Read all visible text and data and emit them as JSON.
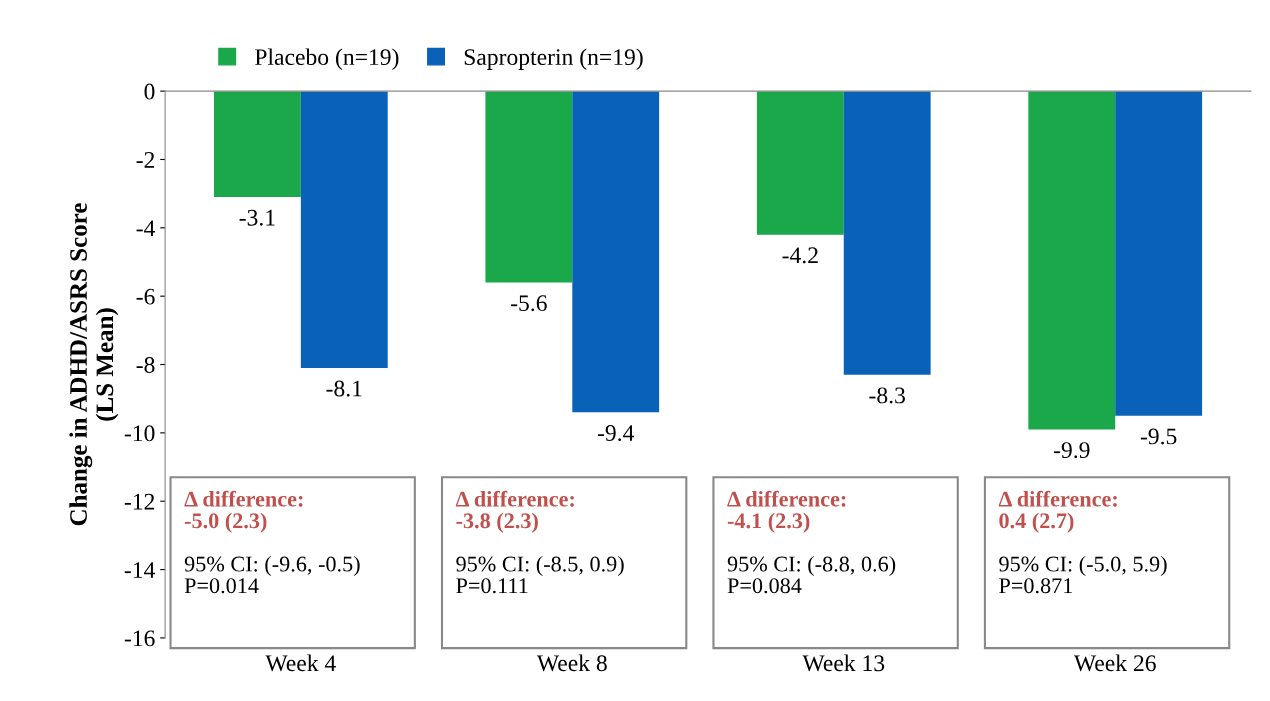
{
  "chart_data": {
    "type": "bar",
    "ylabel": "Change in ADHD/ASRS Score\n(LS Mean)",
    "categories": [
      "Week 4",
      "Week 8",
      "Week 13",
      "Week 26"
    ],
    "series": [
      {
        "name": "Placebo (n=19)",
        "color": "#1aa84a",
        "values": [
          -3.1,
          -5.6,
          -4.2,
          -9.9
        ]
      },
      {
        "name": "Sapropterin (n=19)",
        "color": "#0a62b8",
        "values": [
          -8.1,
          -9.4,
          -8.3,
          -9.5
        ]
      }
    ],
    "ylim": [
      -16,
      0
    ],
    "yticks": [
      0,
      -2,
      -4,
      -6,
      -8,
      -10,
      -12,
      -14,
      -16
    ],
    "data_labels": true,
    "legend": "top left",
    "grid": false,
    "annotations": [
      "Δ difference:\n-5.0 (2.3)",
      "95% CI: (-9.6, -0.5)\nP=0.014",
      "Δ difference:\n-3.8 (2.3)",
      "95% CI: (-8.5, 0.9)\nP=0.111",
      "Δ difference:\n-4.1 (2.3)",
      "95% CI: (-8.8, 0.6)\nP=0.084",
      "Δ difference:\n0.4 (2.7)",
      "95% CI: (-5.0, 5.9)\nP=0.871"
    ]
  }
}
